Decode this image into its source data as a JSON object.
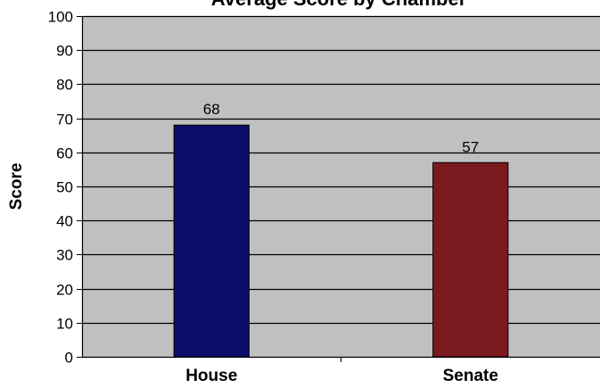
{
  "chart_data": {
    "type": "bar",
    "title": "Average Score by Chamber",
    "xlabel": "",
    "ylabel": "Score",
    "categories": [
      "House",
      "Senate"
    ],
    "values": [
      68,
      57
    ],
    "data_labels": [
      "68",
      "57"
    ],
    "ylim": [
      0,
      100
    ],
    "yticks": [
      0,
      10,
      20,
      30,
      40,
      50,
      60,
      70,
      80,
      90,
      100
    ],
    "ytick_labels": [
      "0",
      "10",
      "20",
      "30",
      "40",
      "50",
      "60",
      "70",
      "80",
      "90",
      "100"
    ],
    "grid": true,
    "legend": "none",
    "colors": {
      "plot_background": "#c0c0c0",
      "gridline": "#000000",
      "bars": [
        "#0d0d6b",
        "#7a1a1f"
      ]
    }
  }
}
